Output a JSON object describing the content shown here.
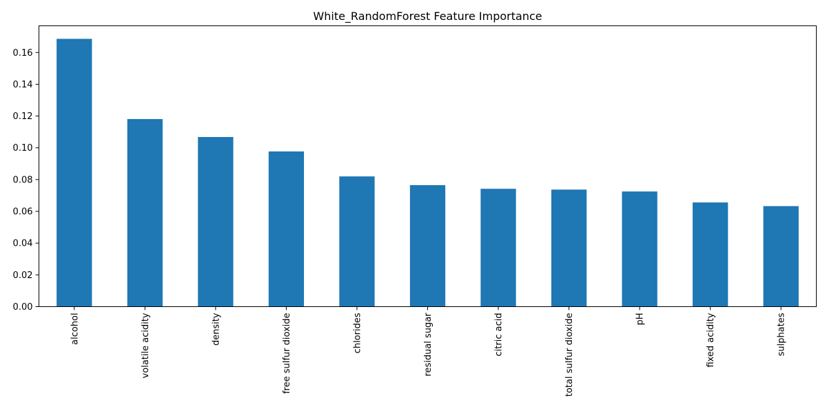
{
  "chart_data": {
    "type": "bar",
    "title": "White_RandomForest Feature Importance",
    "xlabel": "",
    "ylabel": "",
    "categories": [
      "alcohol",
      "volatile acidity",
      "density",
      "free sulfur dioxide",
      "chlorides",
      "residual sugar",
      "citric acid",
      "total sulfur dioxide",
      "pH",
      "fixed acidity",
      "sulphates"
    ],
    "values": [
      0.1686,
      0.1181,
      0.1068,
      0.0977,
      0.082,
      0.0765,
      0.0742,
      0.0737,
      0.0725,
      0.0656,
      0.0633
    ],
    "ylim": [
      0,
      0.1768
    ],
    "yticks": [
      0.0,
      0.02,
      0.04,
      0.06,
      0.08,
      0.1,
      0.12,
      0.14,
      0.16
    ],
    "ytick_labels": [
      "0.00",
      "0.02",
      "0.04",
      "0.06",
      "0.08",
      "0.10",
      "0.12",
      "0.14",
      "0.16"
    ],
    "bar_color": "#1f77b4",
    "grid": false,
    "legend": "none"
  }
}
